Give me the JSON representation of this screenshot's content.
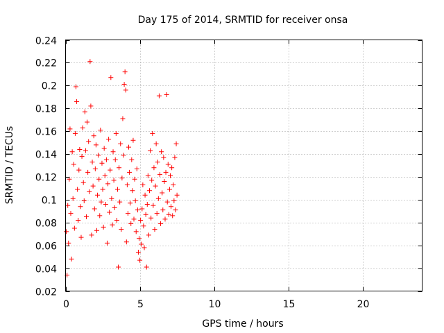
{
  "chart_data": {
    "type": "scatter",
    "title": "Day 175 of 2014, SRMTID for receiver onsa",
    "xlabel": "GPS time / hours",
    "ylabel": "SRMTID / TECUs",
    "xlim": [
      0,
      24
    ],
    "ylim": [
      0.02,
      0.24
    ],
    "xticks": [
      0,
      5,
      10,
      15,
      20
    ],
    "xtick_labels": [
      "0",
      "5",
      "10",
      "15",
      "20"
    ],
    "yticks": [
      0.02,
      0.04,
      0.06,
      0.08,
      0.1,
      0.12,
      0.14,
      0.16,
      0.18,
      0.2,
      0.22,
      0.24
    ],
    "ytick_labels": [
      "0.02",
      "0.04",
      "0.06",
      "0.08",
      "0.1",
      "0.12",
      "0.14",
      "0.16",
      "0.18",
      "0.2",
      "0.22",
      "0.24"
    ],
    "grid": true,
    "marker": "+",
    "color": "#ff0000",
    "series": [
      {
        "name": "SRMTID",
        "points": [
          [
            0.05,
            0.072
          ],
          [
            0.1,
            0.034
          ],
          [
            0.15,
            0.095
          ],
          [
            0.2,
            0.062
          ],
          [
            0.25,
            0.118
          ],
          [
            0.3,
            0.162
          ],
          [
            0.35,
            0.088
          ],
          [
            0.4,
            0.048
          ],
          [
            0.45,
            0.142
          ],
          [
            0.5,
            0.101
          ],
          [
            0.55,
            0.131
          ],
          [
            0.6,
            0.075
          ],
          [
            0.65,
            0.158
          ],
          [
            0.7,
            0.199
          ],
          [
            0.75,
            0.186
          ],
          [
            0.8,
            0.109
          ],
          [
            0.85,
            0.082
          ],
          [
            0.9,
            0.126
          ],
          [
            0.95,
            0.144
          ],
          [
            1.0,
            0.094
          ],
          [
            1.05,
            0.067
          ],
          [
            1.1,
            0.138
          ],
          [
            1.15,
            0.163
          ],
          [
            1.2,
            0.115
          ],
          [
            1.25,
            0.099
          ],
          [
            1.3,
            0.177
          ],
          [
            1.35,
            0.143
          ],
          [
            1.4,
            0.085
          ],
          [
            1.45,
            0.168
          ],
          [
            1.5,
            0.124
          ],
          [
            1.55,
            0.151
          ],
          [
            1.6,
            0.107
          ],
          [
            1.65,
            0.221
          ],
          [
            1.7,
            0.182
          ],
          [
            1.75,
            0.069
          ],
          [
            1.8,
            0.133
          ],
          [
            1.85,
            0.112
          ],
          [
            1.9,
            0.156
          ],
          [
            1.95,
            0.092
          ],
          [
            2.0,
            0.127
          ],
          [
            2.05,
            0.148
          ],
          [
            2.1,
            0.073
          ],
          [
            2.15,
            0.104
          ],
          [
            2.2,
            0.139
          ],
          [
            2.25,
            0.118
          ],
          [
            2.3,
            0.086
          ],
          [
            2.35,
            0.161
          ],
          [
            2.4,
            0.098
          ],
          [
            2.45,
            0.132
          ],
          [
            2.5,
            0.109
          ],
          [
            2.55,
            0.076
          ],
          [
            2.6,
            0.145
          ],
          [
            2.65,
            0.121
          ],
          [
            2.7,
            0.096
          ],
          [
            2.75,
            0.135
          ],
          [
            2.8,
            0.062
          ],
          [
            2.85,
            0.114
          ],
          [
            2.9,
            0.153
          ],
          [
            2.95,
            0.089
          ],
          [
            3.0,
            0.126
          ],
          [
            3.05,
            0.207
          ],
          [
            3.1,
            0.101
          ],
          [
            3.15,
            0.078
          ],
          [
            3.2,
            0.142
          ],
          [
            3.25,
            0.117
          ],
          [
            3.3,
            0.093
          ],
          [
            3.35,
            0.135
          ],
          [
            3.4,
            0.158
          ],
          [
            3.45,
            0.082
          ],
          [
            3.5,
            0.109
          ],
          [
            3.55,
            0.041
          ],
          [
            3.6,
            0.128
          ],
          [
            3.65,
            0.098
          ],
          [
            3.7,
            0.149
          ],
          [
            3.75,
            0.074
          ],
          [
            3.8,
            0.119
          ],
          [
            3.85,
            0.171
          ],
          [
            3.9,
            0.139
          ],
          [
            3.95,
            0.201
          ],
          [
            4.0,
            0.212
          ],
          [
            4.05,
            0.196
          ],
          [
            4.1,
            0.063
          ],
          [
            4.15,
            0.113
          ],
          [
            4.2,
            0.088
          ],
          [
            4.25,
            0.146
          ],
          [
            4.3,
            0.124
          ],
          [
            4.35,
            0.097
          ],
          [
            4.4,
            0.079
          ],
          [
            4.45,
            0.135
          ],
          [
            4.5,
            0.108
          ],
          [
            4.55,
            0.152
          ],
          [
            4.6,
            0.083
          ],
          [
            4.65,
            0.118
          ],
          [
            4.7,
            0.099
          ],
          [
            4.75,
            0.072
          ],
          [
            4.8,
            0.127
          ],
          [
            4.85,
            0.091
          ],
          [
            4.9,
            0.054
          ],
          [
            4.95,
            0.066
          ],
          [
            5.0,
            0.047
          ],
          [
            5.05,
            0.082
          ],
          [
            5.1,
            0.061
          ],
          [
            5.15,
            0.092
          ],
          [
            5.2,
            0.113
          ],
          [
            5.25,
            0.077
          ],
          [
            5.3,
            0.058
          ],
          [
            5.35,
            0.104
          ],
          [
            5.4,
            0.087
          ],
          [
            5.45,
            0.041
          ],
          [
            5.5,
            0.096
          ],
          [
            5.55,
            0.121
          ],
          [
            5.6,
            0.069
          ],
          [
            5.65,
            0.108
          ],
          [
            5.7,
            0.143
          ],
          [
            5.75,
            0.084
          ],
          [
            5.8,
            0.117
          ],
          [
            5.85,
            0.158
          ],
          [
            5.9,
            0.095
          ],
          [
            5.95,
            0.128
          ],
          [
            6.0,
            0.074
          ],
          [
            6.05,
            0.112
          ],
          [
            6.1,
            0.149
          ],
          [
            6.15,
            0.088
          ],
          [
            6.2,
            0.133
          ],
          [
            6.25,
            0.101
          ],
          [
            6.3,
            0.191
          ],
          [
            6.35,
            0.122
          ],
          [
            6.4,
            0.079
          ],
          [
            6.45,
            0.142
          ],
          [
            6.5,
            0.106
          ],
          [
            6.55,
            0.091
          ],
          [
            6.6,
            0.137
          ],
          [
            6.65,
            0.116
          ],
          [
            6.7,
            0.083
          ],
          [
            6.75,
            0.124
          ],
          [
            6.8,
            0.192
          ],
          [
            6.85,
            0.098
          ],
          [
            6.9,
            0.131
          ],
          [
            6.95,
            0.087
          ],
          [
            7.0,
            0.109
          ],
          [
            7.05,
            0.121
          ],
          [
            7.1,
            0.094
          ],
          [
            7.15,
            0.128
          ],
          [
            7.2,
            0.086
          ],
          [
            7.25,
            0.113
          ],
          [
            7.3,
            0.099
          ],
          [
            7.35,
            0.137
          ],
          [
            7.4,
            0.091
          ],
          [
            7.45,
            0.149
          ],
          [
            7.5,
            0.104
          ]
        ]
      }
    ]
  }
}
